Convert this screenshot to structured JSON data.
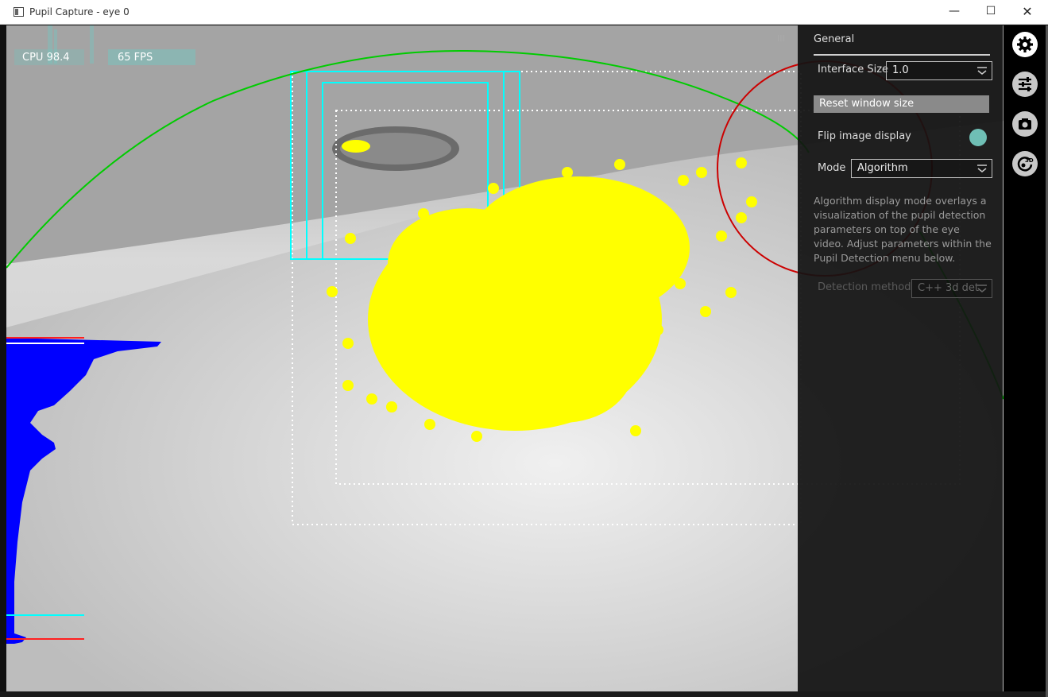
{
  "window": {
    "title": "Pupil Capture - eye 0",
    "minimize_glyph": "—",
    "maximize_glyph": "☐",
    "close_glyph": "✕"
  },
  "graphs": {
    "cpu_label": "CPU 98.4",
    "fps_label": "65 FPS"
  },
  "sidebar": {
    "handle": "III",
    "title": "General",
    "interface_size_label": "Interface Size",
    "interface_size_value": "1.0",
    "reset_button": "Reset window size",
    "flip_label": "Flip image display",
    "mode_label": "Mode",
    "mode_value": "Algorithm",
    "description": "Algorithm display mode overlays a visualization of the pupil detection parameters on top of the eye video. Adjust parameters within the Pupil Detection menu below.",
    "detection_method_label": "Detection method",
    "detection_method_value": "C++ 3d det"
  },
  "iconbar": {
    "items": [
      "gear-icon",
      "sliders-icon",
      "camera-icon",
      "pupil-3d-icon"
    ],
    "active": "gear-icon"
  },
  "colors": {
    "accent": "#6fbfb5",
    "histogram": "#0000ff",
    "candidate": "#ffff00",
    "roi": "#00ffff",
    "ellipse": "#00cc00",
    "fit": "#cc0000"
  }
}
